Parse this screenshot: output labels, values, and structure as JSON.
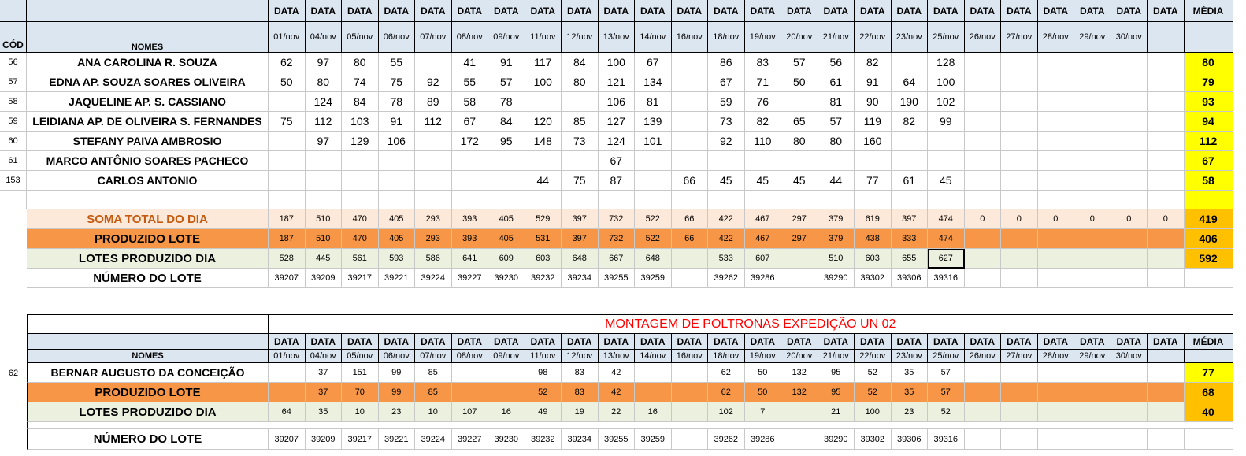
{
  "table1": {
    "header_col": "DATA",
    "media_label": "MÉDIA",
    "cod_label": "CÓD",
    "names_label": "NOMES",
    "dates": [
      "01/nov",
      "04/nov",
      "05/nov",
      "06/nov",
      "07/nov",
      "08/nov",
      "09/nov",
      "11/nov",
      "12/nov",
      "13/nov",
      "14/nov",
      "16/nov",
      "18/nov",
      "19/nov",
      "20/nov",
      "21/nov",
      "22/nov",
      "23/nov",
      "25/nov",
      "26/nov",
      "27/nov",
      "28/nov",
      "29/nov",
      "30/nov",
      ""
    ],
    "rows": [
      {
        "code": "56",
        "name": "ANA CAROLINA R. SOUZA",
        "values": [
          "62",
          "97",
          "80",
          "55",
          "",
          "41",
          "91",
          "117",
          "84",
          "100",
          "67",
          "",
          "86",
          "83",
          "57",
          "56",
          "82",
          "",
          "128",
          "",
          "",
          "",
          "",
          "",
          ""
        ],
        "media": "80"
      },
      {
        "code": "57",
        "name": "EDNA AP. SOUZA SOARES OLIVEIRA",
        "values": [
          "50",
          "80",
          "74",
          "75",
          "92",
          "55",
          "57",
          "100",
          "80",
          "121",
          "134",
          "",
          "67",
          "71",
          "50",
          "61",
          "91",
          "64",
          "100",
          "",
          "",
          "",
          "",
          "",
          ""
        ],
        "media": "79"
      },
      {
        "code": "58",
        "name": "JAQUELINE AP.  S. CASSIANO",
        "values": [
          "",
          "124",
          "84",
          "78",
          "89",
          "58",
          "78",
          "",
          "",
          "106",
          "81",
          "",
          "59",
          "76",
          "",
          "81",
          "90",
          "190",
          "102",
          "",
          "",
          "",
          "",
          "",
          ""
        ],
        "media": "93"
      },
      {
        "code": "59",
        "name": "LEIDIANA AP. DE OLIVEIRA S. FERNANDES",
        "values": [
          "75",
          "112",
          "103",
          "91",
          "112",
          "67",
          "84",
          "120",
          "85",
          "127",
          "139",
          "",
          "73",
          "82",
          "65",
          "57",
          "119",
          "82",
          "99",
          "",
          "",
          "",
          "",
          "",
          ""
        ],
        "media": "94"
      },
      {
        "code": "60",
        "name": "STEFANY PAIVA AMBROSIO",
        "values": [
          "",
          "97",
          "129",
          "106",
          "",
          "172",
          "95",
          "148",
          "73",
          "124",
          "101",
          "",
          "92",
          "110",
          "80",
          "80",
          "160",
          "",
          "",
          "",
          "",
          "",
          "",
          "",
          ""
        ],
        "media": "112"
      },
      {
        "code": "61",
        "name": "MARCO ANTÔNIO SOARES PACHECO",
        "values": [
          "",
          "",
          "",
          "",
          "",
          "",
          "",
          "",
          "",
          "67",
          "",
          "",
          "",
          "",
          "",
          "",
          "",
          "",
          "",
          "",
          "",
          "",
          "",
          "",
          ""
        ],
        "media": "67"
      },
      {
        "code": "153",
        "name": "CARLOS ANTONIO",
        "values": [
          "",
          "",
          "",
          "",
          "",
          "",
          "",
          "44",
          "75",
          "87",
          "",
          "66",
          "45",
          "45",
          "45",
          "44",
          "77",
          "61",
          "45",
          "",
          "",
          "",
          "",
          "",
          ""
        ],
        "media": "58"
      }
    ],
    "soma": {
      "label": "SOMA TOTAL DO DIA",
      "values": [
        "187",
        "510",
        "470",
        "405",
        "293",
        "393",
        "405",
        "529",
        "397",
        "732",
        "522",
        "66",
        "422",
        "467",
        "297",
        "379",
        "619",
        "397",
        "474",
        "0",
        "0",
        "0",
        "0",
        "0",
        "0"
      ],
      "media": "419"
    },
    "produzido": {
      "label": "PRODUZIDO LOTE",
      "values": [
        "187",
        "510",
        "470",
        "405",
        "293",
        "393",
        "405",
        "531",
        "397",
        "732",
        "522",
        "66",
        "422",
        "467",
        "297",
        "379",
        "438",
        "333",
        "474",
        "",
        "",
        "",
        "",
        "",
        ""
      ],
      "media": "406"
    },
    "lotes": {
      "label": "LOTES PRODUZIDO DIA",
      "values": [
        "528",
        "445",
        "561",
        "593",
        "586",
        "641",
        "609",
        "603",
        "648",
        "667",
        "648",
        "",
        "533",
        "607",
        "",
        "510",
        "603",
        "655",
        "627",
        "",
        "",
        "",
        "",
        "",
        ""
      ],
      "media": "592"
    },
    "numero": {
      "label": "NÚMERO DO LOTE",
      "values": [
        "39207",
        "39209",
        "39217",
        "39221",
        "39224",
        "39227",
        "39230",
        "39232",
        "39234",
        "39255",
        "39259",
        "",
        "39262",
        "39286",
        "",
        "39290",
        "39302",
        "39306",
        "39316",
        "",
        "",
        "",
        "",
        "",
        ""
      ]
    }
  },
  "table2": {
    "title": "MONTAGEM DE POLTRONAS EXPEDIÇÃO UN 02",
    "header_col": "DATA",
    "media_label": "MÉDIA",
    "names_label": "NOMES",
    "dates": [
      "01/nov",
      "04/nov",
      "05/nov",
      "06/nov",
      "07/nov",
      "08/nov",
      "09/nov",
      "11/nov",
      "12/nov",
      "13/nov",
      "14/nov",
      "16/nov",
      "18/nov",
      "19/nov",
      "20/nov",
      "21/nov",
      "22/nov",
      "23/nov",
      "25/nov",
      "26/nov",
      "27/nov",
      "28/nov",
      "29/nov",
      "30/nov",
      ""
    ],
    "rows": [
      {
        "code": "62",
        "name": "BERNAR AUGUSTO DA CONCEIÇÃO",
        "values": [
          "",
          "37",
          "151",
          "99",
          "85",
          "",
          "",
          "98",
          "83",
          "42",
          "",
          "",
          "62",
          "50",
          "132",
          "95",
          "52",
          "35",
          "57",
          "",
          "",
          "",
          "",
          "",
          ""
        ],
        "media": "77"
      }
    ],
    "produzido": {
      "label": "PRODUZIDO LOTE",
      "values": [
        "",
        "37",
        "70",
        "99",
        "85",
        "",
        "",
        "52",
        "83",
        "42",
        "",
        "",
        "62",
        "50",
        "132",
        "95",
        "52",
        "35",
        "57",
        "",
        "",
        "",
        "",
        "",
        ""
      ],
      "media": "68"
    },
    "lotes": {
      "label": "LOTES PRODUZIDO DIA",
      "values": [
        "64",
        "35",
        "10",
        "23",
        "10",
        "107",
        "16",
        "49",
        "19",
        "22",
        "16",
        "",
        "102",
        "7",
        "",
        "21",
        "100",
        "23",
        "52",
        "",
        "",
        "",
        "",
        "",
        ""
      ],
      "media": "40"
    },
    "numero": {
      "label": "NÚMERO DO LOTE",
      "values": [
        "39207",
        "39209",
        "39217",
        "39221",
        "39224",
        "39227",
        "39230",
        "39232",
        "39234",
        "39255",
        "39259",
        "",
        "39262",
        "39286",
        "",
        "39290",
        "39302",
        "39306",
        "39316",
        "",
        "",
        "",
        "",
        "",
        ""
      ]
    }
  },
  "colors": {
    "header": "#dce6f1",
    "media": "#ffff00",
    "media_alt": "#ffc000",
    "soma": "#fde9d9",
    "produzido": "#f79646",
    "lotes": "#ebf1de",
    "title_red": "#ff0000"
  }
}
